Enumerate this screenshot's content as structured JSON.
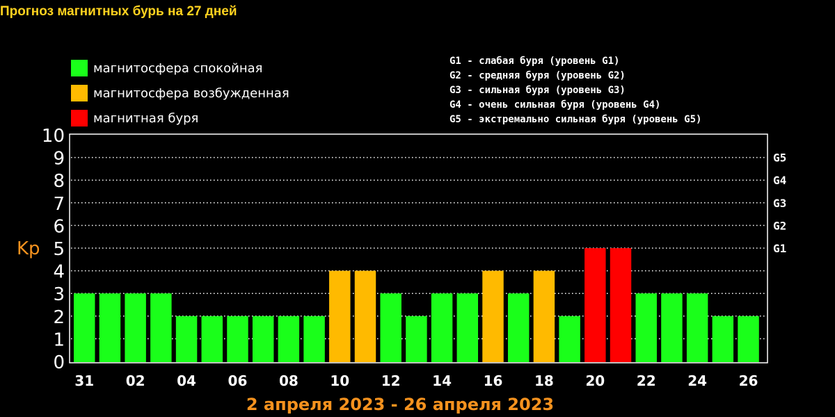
{
  "title": "Прогноз магнитных бурь на 27 дней",
  "legend_levels": [
    {
      "label": "магнитосфера спокойная",
      "color": "#1aff1a"
    },
    {
      "label": "магнитосфера возбужденная",
      "color": "#ffba00"
    },
    {
      "label": "магнитная буря",
      "color": "#ff0000"
    }
  ],
  "legend_storms": [
    "G1 - слабая буря (уровень G1)",
    "G2 - средняя буря (уровень G2)",
    "G3 - сильная буря (уровень G3)",
    "G4 - очень сильная буря (уровень G4)",
    "G5 - экстремально сильная буря (уровень G5)"
  ],
  "footer": "2 апреля 2023 - 26 апреля 2023",
  "chart_data": {
    "type": "bar",
    "ylabel": "Kp",
    "ylim": [
      0,
      10
    ],
    "y_ticks": [
      "0",
      "1",
      "2",
      "3",
      "4",
      "5",
      "6",
      "7",
      "8",
      "9",
      "10"
    ],
    "right_ticks": [
      {
        "value": 5,
        "label": "G1"
      },
      {
        "value": 6,
        "label": "G2"
      },
      {
        "value": 7,
        "label": "G3"
      },
      {
        "value": 8,
        "label": "G4"
      },
      {
        "value": 9,
        "label": "G5"
      }
    ],
    "grid": "dotted horizontal",
    "x_tick_labels": [
      "31",
      "02",
      "04",
      "06",
      "08",
      "10",
      "12",
      "14",
      "16",
      "18",
      "20",
      "22",
      "24",
      "26"
    ],
    "values": [
      3,
      3,
      3,
      3,
      2,
      2,
      2,
      2,
      2,
      2,
      4,
      4,
      3,
      2,
      3,
      3,
      4,
      3,
      4,
      2,
      5,
      5,
      3,
      3,
      3,
      2,
      2
    ],
    "colors": {
      "quiet": "#1aff1a",
      "disturbed": "#ffba00",
      "storm": "#ff0000"
    }
  }
}
